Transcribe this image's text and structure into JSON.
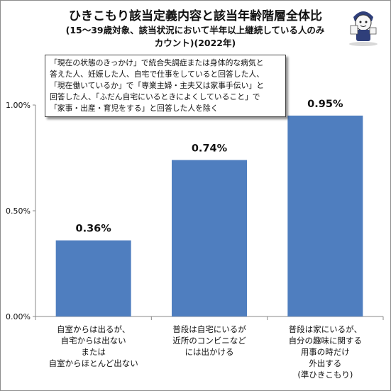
{
  "chart_data": {
    "type": "bar",
    "title": "ひきこもり該当定義内容と該当年齢階層全体比",
    "subtitle_lines": [
      "(15～39歳対象、該当状況において半年以上継続している人のみ",
      "カウント)(2022年)"
    ],
    "categories": [
      [
        "自室からは出るが、",
        "自宅からは出ない",
        "または",
        "自室からほとんど出ない"
      ],
      [
        "普段は自宅にいるが",
        "近所のコンビニなど",
        "には出かける"
      ],
      [
        "普段は家にいるが、",
        "自分の趣味に関する",
        "用事の時だけ",
        "外出する",
        "(準ひきこもり)"
      ]
    ],
    "values": [
      0.36,
      0.74,
      0.95
    ],
    "value_labels": [
      "0.36%",
      "0.74%",
      "0.95%"
    ],
    "ylim": [
      0,
      1.0
    ],
    "yticks": [
      0.0,
      0.5,
      1.0
    ],
    "ytick_labels": [
      "0.00%",
      "0.50%",
      "1.00%"
    ],
    "grid": false,
    "legend": "none",
    "note_lines": [
      "「現在の状態のきっかけ」で統合失調症または身体的な病気と",
      "答えた人、妊娠した人、自宅で仕事をしていると回答した人、",
      "「現在働いているか」で「専業主婦・主夫又は家事手伝い」と",
      "回答した人、「ふだん自宅にいるときによくしていること」で",
      "「家事・出産・育児をする」と回答した人を除く"
    ],
    "bar_color": "#4f7ebf",
    "axis_color": "#888888"
  }
}
